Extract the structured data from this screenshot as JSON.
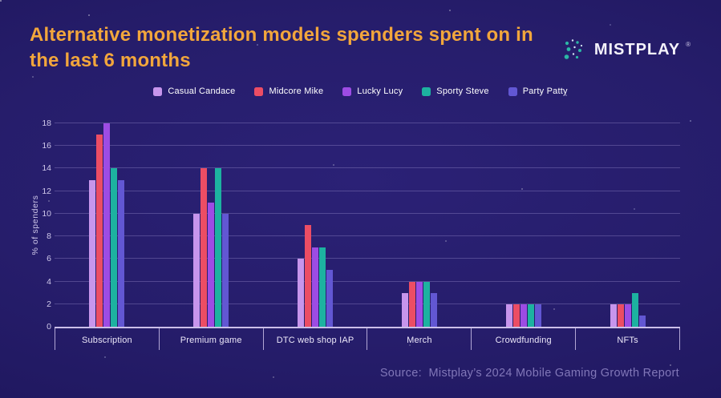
{
  "header": {
    "title_line1": "Alternative monetization models spenders spent on in",
    "title_line2": "the last 6 months",
    "logo_text": "MISTPLAY",
    "logo_reg": "®"
  },
  "footer": {
    "source": "Source:  Mistplay’s 2024 Mobile Gaming Growth Report"
  },
  "colors": {
    "background": "#261d6b",
    "title": "#f2a63c",
    "axis_line": "#cbbfe9",
    "gridline": "#6a5fae",
    "tick_label": "#cfc8ea",
    "category_label": "#ece7f9",
    "legend_text": "#ffffff",
    "source_text": "#8177b8",
    "logo_teal": "#2cb7a6",
    "logo_light": "#d6e7f5"
  },
  "chart_data": {
    "type": "bar",
    "title": "Alternative monetization models spenders spent on in the last 6 months",
    "categories": [
      "Subscription",
      "Premium game",
      "DTC web shop IAP",
      "Merch",
      "Crowdfunding",
      "NFTs"
    ],
    "series": [
      {
        "name": "Casual Candace",
        "color": "#c795ec",
        "values": [
          13,
          10,
          6,
          3,
          2,
          2
        ]
      },
      {
        "name": "Midcore Mike",
        "color": "#ec4d64",
        "values": [
          17,
          14,
          9,
          4,
          2,
          2
        ]
      },
      {
        "name": "Lucky Lucy",
        "color": "#9d4ce4",
        "values": [
          18,
          11,
          7,
          4,
          2,
          2
        ]
      },
      {
        "name": "Sporty Steve",
        "color": "#1db2a0",
        "values": [
          14,
          14,
          7,
          4,
          2,
          3
        ]
      },
      {
        "name": "Party Patty",
        "color": "#6257d3",
        "values": [
          13,
          10,
          5,
          3,
          2,
          1
        ]
      }
    ],
    "xlabel": "",
    "ylabel": "% of spenders",
    "ylim": [
      0,
      18
    ],
    "ytick_step": 2,
    "grid": true,
    "legend_position": "top"
  }
}
